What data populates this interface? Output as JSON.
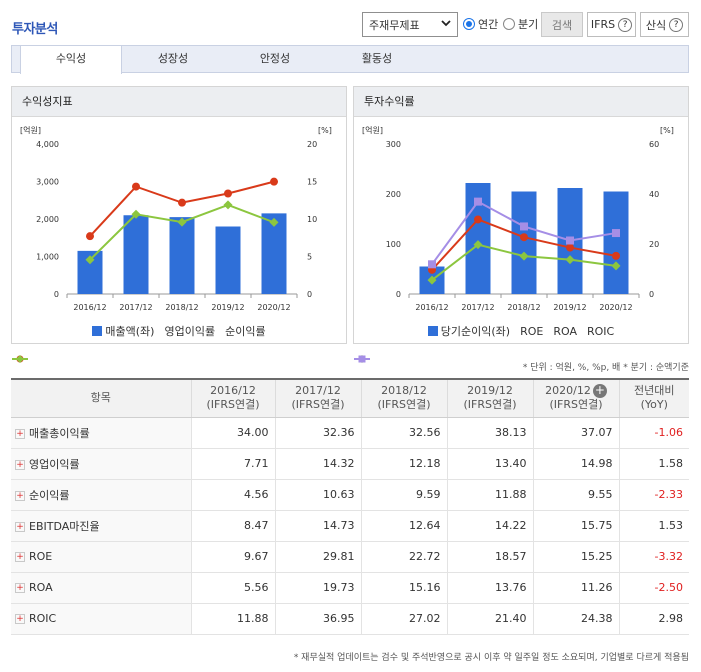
{
  "header": {
    "title": "투자분석"
  },
  "controls": {
    "select_value": "주재무제표",
    "radio_annual": "연간",
    "radio_quarter": "분기",
    "search": "검색",
    "ifrs": "IFRS",
    "formula": "산식"
  },
  "tabs": [
    "수익성",
    "성장성",
    "안정성",
    "활동성"
  ],
  "colors": {
    "bar": "#2f6fd8",
    "red": "#d93a1a",
    "green": "#8cc63f",
    "purple": "#a58ee6",
    "negative": "#e02020"
  },
  "panels": {
    "left_title": "수익성지표",
    "right_title": "투자수익률"
  },
  "chart_data": [
    {
      "type": "bar",
      "categories": [
        "2016/12",
        "2017/12",
        "2018/12",
        "2019/12",
        "2020/12"
      ],
      "ylabel_left": "[억원]",
      "ylabel_right": "[%]",
      "ylim_left": [
        0,
        4000
      ],
      "ylim_right": [
        0,
        20
      ],
      "yticks_left": [
        "0",
        "1,000",
        "2,000",
        "3,000",
        "4,000"
      ],
      "yticks_right": [
        "0",
        "5",
        "10",
        "15",
        "20"
      ],
      "series": [
        {
          "name": "매출액(좌)",
          "type": "bar",
          "axis": "left",
          "values": [
            1150,
            2100,
            2050,
            1800,
            2150
          ]
        },
        {
          "name": "영업이익률",
          "type": "line",
          "axis": "right",
          "values": [
            7.71,
            14.32,
            12.18,
            13.4,
            14.98
          ]
        },
        {
          "name": "순이익률",
          "type": "line",
          "axis": "right",
          "values": [
            4.56,
            10.63,
            9.59,
            11.88,
            9.55
          ]
        }
      ]
    },
    {
      "type": "bar",
      "categories": [
        "2016/12",
        "2017/12",
        "2018/12",
        "2019/12",
        "2020/12"
      ],
      "ylabel_left": "[억원]",
      "ylabel_right": "[%]",
      "ylim_left": [
        0,
        300
      ],
      "ylim_right": [
        0,
        60
      ],
      "yticks_left": [
        "0",
        "100",
        "200",
        "300"
      ],
      "yticks_right": [
        "0",
        "20",
        "40",
        "60"
      ],
      "series": [
        {
          "name": "당기순이익(좌)",
          "type": "bar",
          "axis": "left",
          "values": [
            55,
            222,
            205,
            212,
            205
          ]
        },
        {
          "name": "ROE",
          "type": "line",
          "axis": "right",
          "values": [
            9.67,
            29.81,
            22.72,
            18.57,
            15.25
          ]
        },
        {
          "name": "ROA",
          "type": "line",
          "axis": "right",
          "values": [
            5.56,
            19.73,
            15.16,
            13.76,
            11.26
          ]
        },
        {
          "name": "ROIC",
          "type": "line",
          "axis": "right",
          "values": [
            11.88,
            36.95,
            27.02,
            21.4,
            24.38
          ]
        }
      ]
    }
  ],
  "note": "* 단위 : 억원, %, %p, 배   * 분기 : 순액기준",
  "table": {
    "headers": [
      {
        "l1": "항목",
        "l2": ""
      },
      {
        "l1": "2016/12",
        "l2": "(IFRS연결)"
      },
      {
        "l1": "2017/12",
        "l2": "(IFRS연결)"
      },
      {
        "l1": "2018/12",
        "l2": "(IFRS연결)"
      },
      {
        "l1": "2019/12",
        "l2": "(IFRS연결)"
      },
      {
        "l1": "2020/12",
        "l2": "(IFRS연결)"
      },
      {
        "l1": "전년대비",
        "l2": "(YoY)"
      }
    ],
    "rows": [
      {
        "label": "매출총이익률",
        "values": [
          "34.00",
          "32.36",
          "32.56",
          "38.13",
          "37.07"
        ],
        "yoy": "-1.06"
      },
      {
        "label": "영업이익률",
        "values": [
          "7.71",
          "14.32",
          "12.18",
          "13.40",
          "14.98"
        ],
        "yoy": "1.58"
      },
      {
        "label": "순이익률",
        "values": [
          "4.56",
          "10.63",
          "9.59",
          "11.88",
          "9.55"
        ],
        "yoy": "-2.33"
      },
      {
        "label": "EBITDA마진율",
        "values": [
          "8.47",
          "14.73",
          "12.64",
          "14.22",
          "15.75"
        ],
        "yoy": "1.53"
      },
      {
        "label": "ROE",
        "values": [
          "9.67",
          "29.81",
          "22.72",
          "18.57",
          "15.25"
        ],
        "yoy": "-3.32"
      },
      {
        "label": "ROA",
        "values": [
          "5.56",
          "19.73",
          "15.16",
          "13.76",
          "11.26"
        ],
        "yoy": "-2.50"
      },
      {
        "label": "ROIC",
        "values": [
          "11.88",
          "36.95",
          "27.02",
          "21.40",
          "24.38"
        ],
        "yoy": "2.98"
      }
    ]
  },
  "footer": "* 재무실적 업데이트는 검수 및 주석반영으로 공시 이후 약 일주일 정도 소요되며, 기업별로 다르게 적용됨"
}
